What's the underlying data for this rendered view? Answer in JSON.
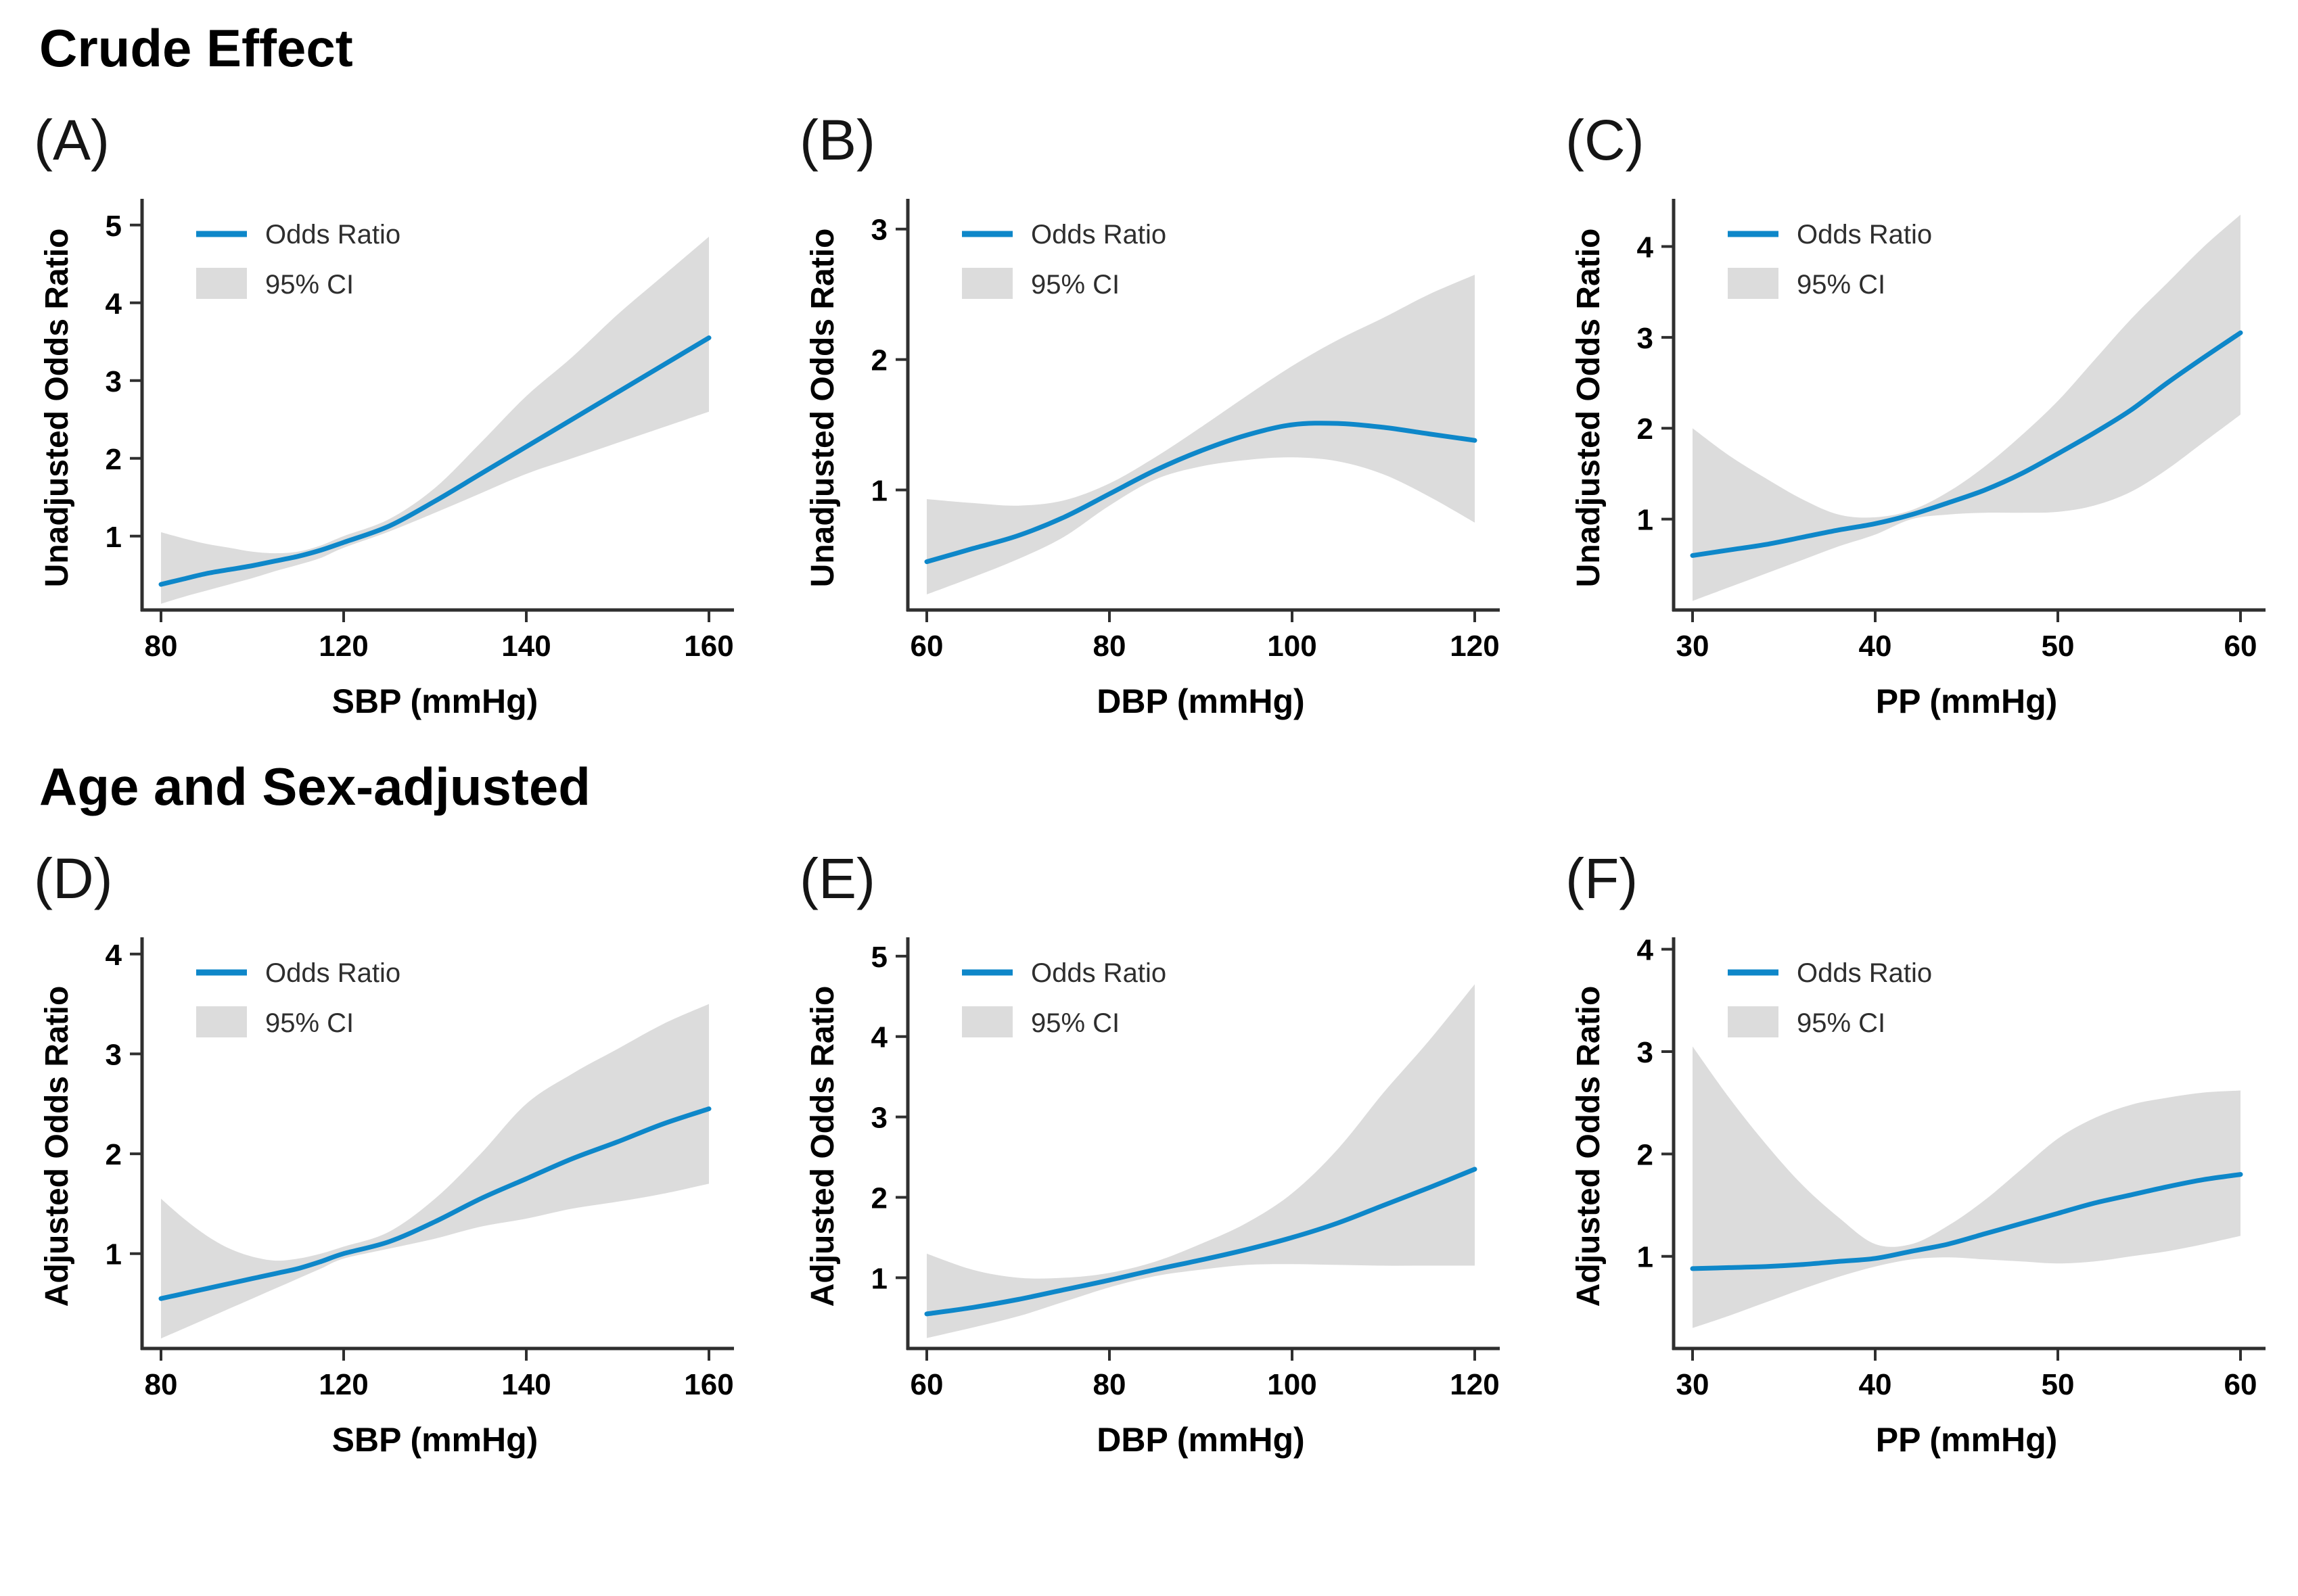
{
  "styles": {
    "line_color": "#0E87C9",
    "ci_color": "#DCDCDC",
    "axis_color": "#2F2F2F",
    "text_color": "#000000",
    "legend_text_color": "#2E2E2E",
    "background": "#FFFFFF"
  },
  "legend": {
    "line_label": "Odds Ratio",
    "band_label": "95% CI",
    "position": "top-left-inset"
  },
  "sections": [
    {
      "title": "Crude Effect",
      "panels": [
        0,
        1,
        2
      ]
    },
    {
      "title": "Age and Sex-adjusted",
      "panels": [
        3,
        4,
        5
      ]
    }
  ],
  "chart_data": [
    {
      "id": "A",
      "label": "(A)",
      "type": "line",
      "title": "",
      "xlabel": "SBP (mmHg)",
      "ylabel": "Unadjusted Odds Ratio",
      "xticks": [
        80,
        120,
        140,
        160
      ],
      "xtick_spacing": "equal-pixel",
      "yticks": [
        1,
        2,
        3,
        4,
        5
      ],
      "ylim": [
        0.05,
        5.25
      ],
      "grid": false,
      "legend": [
        "Odds Ratio",
        "95% CI"
      ],
      "x": [
        80,
        85,
        90,
        95,
        100,
        105,
        110,
        115,
        120,
        125,
        130,
        135,
        140,
        145,
        150,
        155,
        160
      ],
      "or": [
        0.38,
        0.45,
        0.52,
        0.57,
        0.62,
        0.68,
        0.74,
        0.82,
        0.92,
        1.13,
        1.45,
        1.8,
        2.15,
        2.5,
        2.85,
        3.2,
        3.55
      ],
      "lo": [
        0.13,
        0.22,
        0.3,
        0.38,
        0.46,
        0.55,
        0.63,
        0.72,
        0.85,
        1.06,
        1.3,
        1.55,
        1.8,
        2.0,
        2.2,
        2.4,
        2.6
      ],
      "hi": [
        1.05,
        0.97,
        0.9,
        0.85,
        0.8,
        0.78,
        0.8,
        0.88,
        1.0,
        1.22,
        1.62,
        2.2,
        2.8,
        3.3,
        3.85,
        4.35,
        4.85
      ]
    },
    {
      "id": "B",
      "label": "(B)",
      "type": "line",
      "title": "",
      "xlabel": "DBP (mmHg)",
      "ylabel": "Unadjusted Odds Ratio",
      "xticks": [
        60,
        80,
        100,
        120
      ],
      "xtick_spacing": "linear",
      "yticks": [
        1,
        2,
        3
      ],
      "ylim": [
        0.08,
        3.18
      ],
      "grid": false,
      "legend": [
        "Odds Ratio",
        "95% CI"
      ],
      "x": [
        60,
        65,
        70,
        75,
        80,
        85,
        90,
        95,
        100,
        105,
        110,
        115,
        120
      ],
      "or": [
        0.45,
        0.55,
        0.65,
        0.79,
        0.97,
        1.15,
        1.3,
        1.42,
        1.5,
        1.51,
        1.48,
        1.43,
        1.38
      ],
      "lo": [
        0.2,
        0.33,
        0.47,
        0.64,
        0.88,
        1.08,
        1.18,
        1.23,
        1.25,
        1.22,
        1.12,
        0.95,
        0.75
      ],
      "hi": [
        0.93,
        0.9,
        0.88,
        0.92,
        1.05,
        1.25,
        1.48,
        1.72,
        1.95,
        2.15,
        2.32,
        2.5,
        2.65
      ]
    },
    {
      "id": "C",
      "label": "(C)",
      "type": "line",
      "title": "",
      "xlabel": "PP (mmHg)",
      "ylabel": "Unadjusted Odds Ratio",
      "xticks": [
        30,
        40,
        50,
        60
      ],
      "xtick_spacing": "linear",
      "yticks": [
        1,
        2,
        3,
        4
      ],
      "ylim": [
        0.0,
        4.45
      ],
      "grid": false,
      "legend": [
        "Odds Ratio",
        "95% CI"
      ],
      "x": [
        30,
        32,
        34,
        36,
        38,
        40,
        42,
        44,
        46,
        48,
        50,
        52,
        54,
        56,
        58,
        60
      ],
      "or": [
        0.6,
        0.66,
        0.72,
        0.8,
        0.88,
        0.95,
        1.05,
        1.18,
        1.32,
        1.5,
        1.72,
        1.95,
        2.2,
        2.5,
        2.78,
        3.05
      ],
      "lo": [
        0.1,
        0.25,
        0.4,
        0.55,
        0.7,
        0.83,
        1.0,
        1.05,
        1.07,
        1.07,
        1.08,
        1.15,
        1.3,
        1.55,
        1.85,
        2.15
      ],
      "hi": [
        2.0,
        1.7,
        1.45,
        1.22,
        1.05,
        1.02,
        1.1,
        1.3,
        1.58,
        1.92,
        2.3,
        2.75,
        3.2,
        3.6,
        4.0,
        4.35
      ]
    },
    {
      "id": "D",
      "label": "(D)",
      "type": "line",
      "title": "",
      "xlabel": "SBP (mmHg)",
      "ylabel": "Adjusted Odds Ratio",
      "xticks": [
        80,
        120,
        140,
        160
      ],
      "xtick_spacing": "equal-pixel",
      "yticks": [
        1,
        2,
        3,
        4
      ],
      "ylim": [
        0.05,
        4.1
      ],
      "grid": false,
      "legend": [
        "Odds Ratio",
        "95% CI"
      ],
      "x": [
        80,
        85,
        90,
        95,
        100,
        105,
        110,
        115,
        120,
        125,
        130,
        135,
        140,
        145,
        150,
        155,
        160
      ],
      "or": [
        0.55,
        0.6,
        0.65,
        0.7,
        0.75,
        0.8,
        0.85,
        0.92,
        1.0,
        1.12,
        1.32,
        1.55,
        1.75,
        1.95,
        2.12,
        2.3,
        2.45
      ],
      "lo": [
        0.15,
        0.25,
        0.35,
        0.45,
        0.55,
        0.65,
        0.75,
        0.85,
        0.95,
        1.05,
        1.15,
        1.27,
        1.35,
        1.45,
        1.52,
        1.6,
        1.7
      ],
      "hi": [
        1.55,
        1.35,
        1.18,
        1.05,
        0.97,
        0.93,
        0.95,
        1.0,
        1.07,
        1.22,
        1.55,
        2.0,
        2.5,
        2.8,
        3.05,
        3.3,
        3.5
      ]
    },
    {
      "id": "E",
      "label": "(E)",
      "type": "line",
      "title": "",
      "xlabel": "DBP (mmHg)",
      "ylabel": "Adjusted Odds Ratio",
      "xticks": [
        60,
        80,
        100,
        120
      ],
      "xtick_spacing": "linear",
      "yticks": [
        1,
        2,
        3,
        4,
        5
      ],
      "ylim": [
        0.12,
        5.15
      ],
      "grid": false,
      "legend": [
        "Odds Ratio",
        "95% CI"
      ],
      "x": [
        60,
        65,
        70,
        75,
        80,
        85,
        90,
        95,
        100,
        105,
        110,
        115,
        120
      ],
      "or": [
        0.55,
        0.63,
        0.73,
        0.85,
        0.97,
        1.1,
        1.22,
        1.35,
        1.5,
        1.68,
        1.9,
        2.12,
        2.35
      ],
      "lo": [
        0.25,
        0.38,
        0.52,
        0.7,
        0.88,
        1.02,
        1.1,
        1.16,
        1.17,
        1.16,
        1.15,
        1.15,
        1.15
      ],
      "hi": [
        1.3,
        1.1,
        1.0,
        1.0,
        1.06,
        1.2,
        1.42,
        1.68,
        2.05,
        2.6,
        3.3,
        3.95,
        4.65
      ]
    },
    {
      "id": "F",
      "label": "(F)",
      "type": "line",
      "title": "",
      "xlabel": "PP (mmHg)",
      "ylabel": "Adjusted Odds Ratio",
      "xticks": [
        30,
        40,
        50,
        60
      ],
      "xtick_spacing": "linear",
      "yticks": [
        1,
        2,
        3,
        4
      ],
      "ylim": [
        0.1,
        4.05
      ],
      "grid": false,
      "legend": [
        "Odds Ratio",
        "95% CI"
      ],
      "x": [
        30,
        32,
        34,
        36,
        38,
        40,
        42,
        44,
        46,
        48,
        50,
        52,
        54,
        56,
        58,
        60
      ],
      "or": [
        0.88,
        0.89,
        0.9,
        0.92,
        0.95,
        0.98,
        1.05,
        1.12,
        1.22,
        1.32,
        1.42,
        1.52,
        1.6,
        1.68,
        1.75,
        1.8
      ],
      "lo": [
        0.3,
        0.42,
        0.55,
        0.68,
        0.8,
        0.9,
        0.97,
        0.99,
        0.97,
        0.95,
        0.93,
        0.95,
        1.0,
        1.05,
        1.12,
        1.2
      ],
      "hi": [
        3.05,
        2.55,
        2.1,
        1.7,
        1.38,
        1.12,
        1.12,
        1.3,
        1.55,
        1.85,
        2.15,
        2.35,
        2.48,
        2.55,
        2.6,
        2.62
      ]
    }
  ]
}
